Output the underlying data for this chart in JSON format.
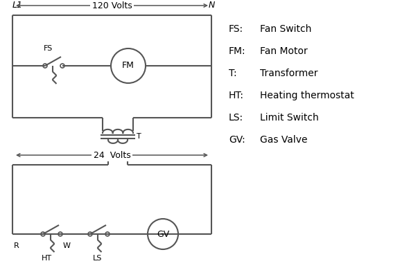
{
  "bg_color": "#ffffff",
  "line_color": "#555555",
  "text_color": "#000000",
  "legend": [
    [
      "FS:",
      "Fan Switch"
    ],
    [
      "FM:",
      " Fan Motor"
    ],
    [
      "T:",
      "    Transformer"
    ],
    [
      "HT:",
      " Heating thermostat"
    ],
    [
      "LS:",
      "  Limit Switch"
    ],
    [
      "GV:",
      "  Gas Valve"
    ]
  ],
  "volts_120": "120 Volts",
  "volts_24": "24  Volts",
  "L1": "L1",
  "N": "N"
}
